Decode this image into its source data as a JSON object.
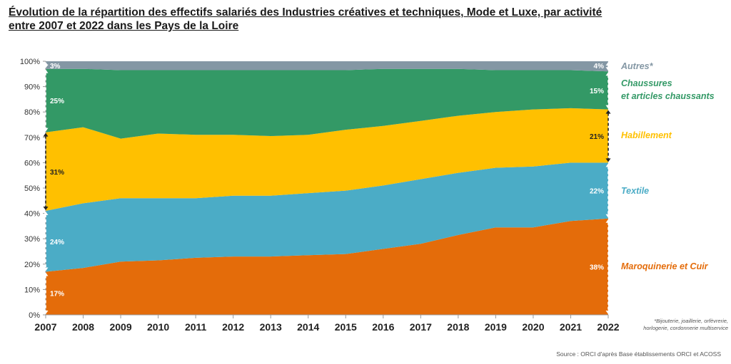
{
  "title_line1": "Évolution de la répartition des effectifs salariés des Industries créatives et techniques, Mode et Luxe, par activité",
  "title_line2": "entre 2007 et 2022 dans les Pays de la Loire",
  "footnote_line1": "*Bijouterie, joaillerie, orfèvrerie,",
  "footnote_line2": "horlogerie, cordonnerie multiservice",
  "source": "Source : ORCI d'après Base établissements ORCI et ACOSS",
  "colors": {
    "maroquinerie": "#E46C0A",
    "textile": "#4BACC6",
    "habillement": "#FFC000",
    "chaussures": "#339966",
    "autres": "#8497A4"
  },
  "chart_data": {
    "type": "area",
    "stacked": true,
    "x": [
      "2007",
      "2008",
      "2009",
      "2010",
      "2011",
      "2012",
      "2013",
      "2014",
      "2015",
      "2016",
      "2017",
      "2018",
      "2019",
      "2020",
      "2021",
      "2022"
    ],
    "ylim": [
      0,
      100
    ],
    "ytick_labels": [
      "0%",
      "10%",
      "20%",
      "30%",
      "40%",
      "50%",
      "60%",
      "70%",
      "80%",
      "90%",
      "100%"
    ],
    "series": [
      {
        "key": "maroquinerie",
        "name": "Maroquinerie et Cuir",
        "values": [
          17,
          18.5,
          21,
          21.5,
          22.5,
          23,
          23,
          23.5,
          24,
          26,
          28,
          31.5,
          34.5,
          34.5,
          37,
          38
        ]
      },
      {
        "key": "textile",
        "name": "Textile",
        "values": [
          24,
          25.5,
          25,
          24.5,
          23.5,
          24,
          24,
          24.5,
          25,
          25,
          25.5,
          24.5,
          23.5,
          24,
          23,
          22
        ]
      },
      {
        "key": "habillement",
        "name": "Habillement",
        "values": [
          31,
          30,
          23.5,
          25.5,
          25,
          24,
          23.5,
          23,
          24,
          23.5,
          23,
          22.5,
          22,
          22.5,
          21.5,
          21
        ]
      },
      {
        "key": "chaussures",
        "name": "Chaussures\net articles chaussants",
        "values": [
          25,
          23,
          27,
          25,
          25.5,
          25.5,
          26,
          25.5,
          23.5,
          22.5,
          20.5,
          18.5,
          16.5,
          15.5,
          15,
          15
        ]
      },
      {
        "key": "autres",
        "name": "Autres*",
        "values": [
          3,
          3,
          3.5,
          3.5,
          3.5,
          3.5,
          3.5,
          3.5,
          3.5,
          3,
          3,
          3,
          3.5,
          3.5,
          3.5,
          4
        ]
      }
    ],
    "start_labels": [
      "17%",
      "24%",
      "31%",
      "25%",
      "3%"
    ],
    "end_labels": [
      "38%",
      "22%",
      "21%",
      "15%",
      "4%"
    ],
    "legend_position": "right"
  }
}
